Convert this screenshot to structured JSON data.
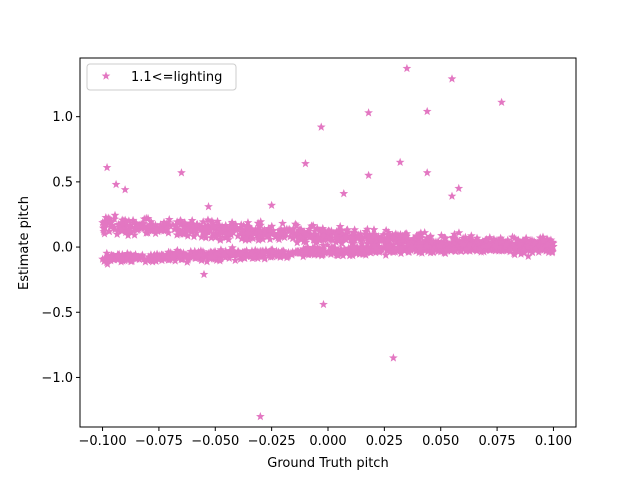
{
  "chart_data": {
    "type": "scatter",
    "title": "",
    "xlabel": "Ground Truth pitch",
    "ylabel": "Estimate pitch",
    "xlim": [
      -0.11,
      0.11
    ],
    "ylim": [
      -1.38,
      1.45
    ],
    "xticks": [
      -0.1,
      -0.075,
      -0.05,
      -0.025,
      0.0,
      0.025,
      0.05,
      0.075,
      0.1
    ],
    "xtick_labels": [
      "−0.100",
      "−0.075",
      "−0.050",
      "−0.025",
      "0.000",
      "0.025",
      "0.050",
      "0.075",
      "0.100"
    ],
    "yticks": [
      -1.0,
      -0.5,
      0.0,
      0.5,
      1.0
    ],
    "ytick_labels": [
      "−1.0",
      "−0.5",
      "0.0",
      "0.5",
      "1.0"
    ],
    "grid": false,
    "legend": {
      "position": "upper-left",
      "entries": [
        "1.1<=lighting"
      ]
    },
    "color": "#e377c2",
    "marker": "star",
    "series": [
      {
        "name": "1.1<=lighting",
        "bands": [
          {
            "description": "upper cluster",
            "x_range": [
              -0.1,
              0.1
            ],
            "y_start": 0.17,
            "y_end": 0.0,
            "spread": 0.07,
            "count": 900
          },
          {
            "description": "lower cluster",
            "x_range": [
              -0.1,
              0.1
            ],
            "y_start": -0.09,
            "y_end": 0.02,
            "spread": 0.04,
            "count": 900
          }
        ],
        "outliers": [
          {
            "x": 0.035,
            "y": 1.37
          },
          {
            "x": 0.055,
            "y": 1.29
          },
          {
            "x": 0.077,
            "y": 1.11
          },
          {
            "x": 0.018,
            "y": 1.03
          },
          {
            "x": 0.044,
            "y": 1.04
          },
          {
            "x": -0.003,
            "y": 0.92
          },
          {
            "x": 0.032,
            "y": 0.65
          },
          {
            "x": -0.01,
            "y": 0.64
          },
          {
            "x": -0.098,
            "y": 0.61
          },
          {
            "x": -0.065,
            "y": 0.57
          },
          {
            "x": 0.018,
            "y": 0.55
          },
          {
            "x": 0.044,
            "y": 0.57
          },
          {
            "x": -0.094,
            "y": 0.48
          },
          {
            "x": -0.09,
            "y": 0.44
          },
          {
            "x": 0.058,
            "y": 0.45
          },
          {
            "x": 0.007,
            "y": 0.41
          },
          {
            "x": 0.055,
            "y": 0.39
          },
          {
            "x": -0.053,
            "y": 0.31
          },
          {
            "x": -0.025,
            "y": 0.32
          },
          {
            "x": -0.055,
            "y": -0.21
          },
          {
            "x": -0.002,
            "y": -0.44
          },
          {
            "x": 0.029,
            "y": -0.85
          },
          {
            "x": -0.03,
            "y": -1.3
          }
        ]
      }
    ]
  }
}
